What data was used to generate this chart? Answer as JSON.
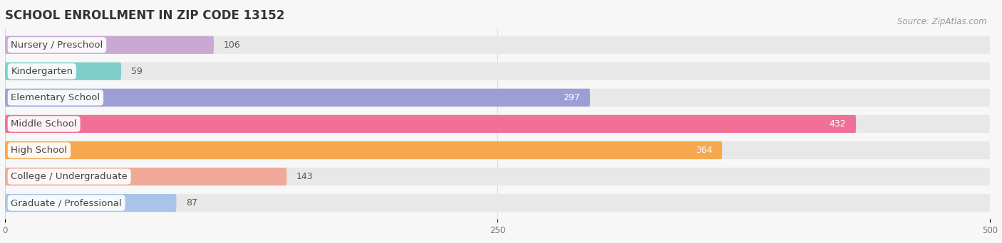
{
  "title": "SCHOOL ENROLLMENT IN ZIP CODE 13152",
  "source": "Source: ZipAtlas.com",
  "categories": [
    "Nursery / Preschool",
    "Kindergarten",
    "Elementary School",
    "Middle School",
    "High School",
    "College / Undergraduate",
    "Graduate / Professional"
  ],
  "values": [
    106,
    59,
    297,
    432,
    364,
    143,
    87
  ],
  "colors": [
    "#c9a8d4",
    "#7ececa",
    "#9b9fd4",
    "#f07098",
    "#f5a84e",
    "#f0a898",
    "#a8c4e8"
  ],
  "xlim": [
    0,
    500
  ],
  "xticks": [
    0,
    250,
    500
  ],
  "background_color": "#f7f7f7",
  "bar_bg_color": "#e8e8e8",
  "title_fontsize": 12,
  "label_fontsize": 9.5,
  "value_fontsize": 9,
  "bar_height": 0.68,
  "label_color": "#444444",
  "value_color_inside": "#ffffff",
  "value_color_outside": "#555555",
  "source_color": "#999999",
  "source_fontsize": 8.5,
  "value_threshold": 180
}
